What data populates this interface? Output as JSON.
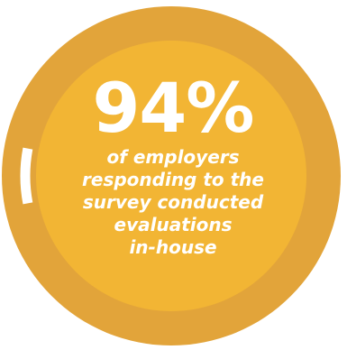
{
  "chart_data": {
    "type": "pie",
    "title": "",
    "value_percent": 94,
    "display_value": "94%",
    "caption_lines": [
      "of employers",
      "responding to the",
      "survey conducted",
      "evaluations",
      "in-house"
    ],
    "colors": {
      "ring": "#E2A43A",
      "gap": "#FFFFFF",
      "center": "#F2B534",
      "text": "#FFFFFF"
    }
  }
}
